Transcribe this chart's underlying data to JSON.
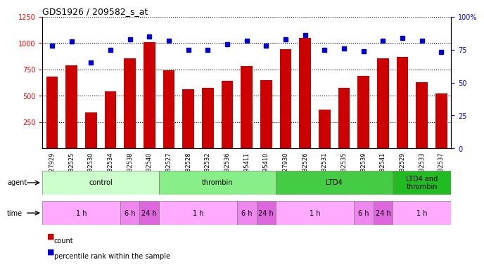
{
  "title": "GDS1926 / 209582_s_at",
  "samples": [
    "GSM27929",
    "GSM82525",
    "GSM82530",
    "GSM82534",
    "GSM82538",
    "GSM82540",
    "GSM82527",
    "GSM82528",
    "GSM82532",
    "GSM82536",
    "GSM95411",
    "GSM95410",
    "GSM27930",
    "GSM82526",
    "GSM82531",
    "GSM82535",
    "GSM82539",
    "GSM82541",
    "GSM82529",
    "GSM82533",
    "GSM82537"
  ],
  "counts": [
    680,
    790,
    340,
    540,
    855,
    1010,
    740,
    560,
    575,
    640,
    780,
    650,
    940,
    1050,
    370,
    575,
    690,
    855,
    870,
    630,
    525
  ],
  "percentile_ranks": [
    78,
    81,
    65,
    75,
    83,
    85,
    82,
    75,
    75,
    79,
    82,
    78,
    83,
    86,
    75,
    76,
    74,
    82,
    84,
    82,
    73
  ],
  "ylim_left": [
    0,
    1250
  ],
  "ylim_right": [
    0,
    100
  ],
  "yticks_left": [
    250,
    500,
    750,
    1000,
    1250
  ],
  "yticks_right": [
    0,
    25,
    50,
    75,
    100
  ],
  "bar_color": "#CC0000",
  "dot_color": "#0000CC",
  "agent_groups": [
    {
      "label": "control",
      "start": 0,
      "end": 6,
      "color": "#CCFFCC"
    },
    {
      "label": "thrombin",
      "start": 6,
      "end": 12,
      "color": "#88EE88"
    },
    {
      "label": "LTD4",
      "start": 12,
      "end": 18,
      "color": "#44CC44"
    },
    {
      "label": "LTD4 and\nthrombin",
      "start": 18,
      "end": 21,
      "color": "#22BB22"
    }
  ],
  "time_groups": [
    {
      "label": "1 h",
      "start": 0,
      "end": 4,
      "color": "#FFAAFF"
    },
    {
      "label": "6 h",
      "start": 4,
      "end": 5,
      "color": "#EE88EE"
    },
    {
      "label": "24 h",
      "start": 5,
      "end": 6,
      "color": "#DD66DD"
    },
    {
      "label": "1 h",
      "start": 6,
      "end": 10,
      "color": "#FFAAFF"
    },
    {
      "label": "6 h",
      "start": 10,
      "end": 11,
      "color": "#EE88EE"
    },
    {
      "label": "24 h",
      "start": 11,
      "end": 12,
      "color": "#DD66DD"
    },
    {
      "label": "1 h",
      "start": 12,
      "end": 16,
      "color": "#FFAAFF"
    },
    {
      "label": "6 h",
      "start": 16,
      "end": 17,
      "color": "#EE88EE"
    },
    {
      "label": "24 h",
      "start": 17,
      "end": 18,
      "color": "#DD66DD"
    },
    {
      "label": "1 h",
      "start": 18,
      "end": 21,
      "color": "#FFAAFF"
    }
  ],
  "legend_items": [
    {
      "label": "count",
      "color": "#CC0000",
      "marker": "s"
    },
    {
      "label": "percentile rank within the sample",
      "color": "#0000CC",
      "marker": "s"
    }
  ]
}
